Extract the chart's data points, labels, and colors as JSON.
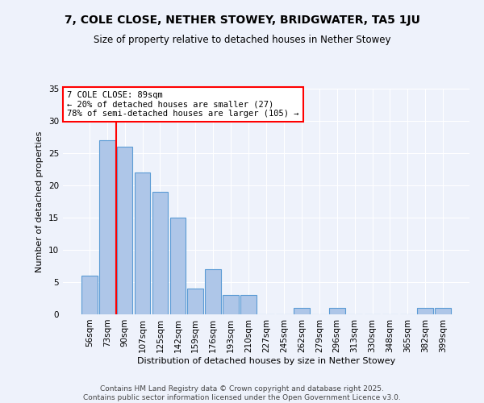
{
  "title": "7, COLE CLOSE, NETHER STOWEY, BRIDGWATER, TA5 1JU",
  "subtitle": "Size of property relative to detached houses in Nether Stowey",
  "xlabel": "Distribution of detached houses by size in Nether Stowey",
  "ylabel": "Number of detached properties",
  "categories": [
    "56sqm",
    "73sqm",
    "90sqm",
    "107sqm",
    "125sqm",
    "142sqm",
    "159sqm",
    "176sqm",
    "193sqm",
    "210sqm",
    "227sqm",
    "245sqm",
    "262sqm",
    "279sqm",
    "296sqm",
    "313sqm",
    "330sqm",
    "348sqm",
    "365sqm",
    "382sqm",
    "399sqm"
  ],
  "values": [
    6,
    27,
    26,
    22,
    19,
    15,
    4,
    7,
    3,
    3,
    0,
    0,
    1,
    0,
    1,
    0,
    0,
    0,
    0,
    1,
    1
  ],
  "bar_color": "#aec6e8",
  "bar_edge_color": "#5b9bd5",
  "vline_x": 1.5,
  "annotation_line1": "7 COLE CLOSE: 89sqm",
  "annotation_line2": "← 20% of detached houses are smaller (27)",
  "annotation_line3": "78% of semi-detached houses are larger (105) →",
  "ylim": [
    0,
    35
  ],
  "yticks": [
    0,
    5,
    10,
    15,
    20,
    25,
    30,
    35
  ],
  "footer1": "Contains HM Land Registry data © Crown copyright and database right 2025.",
  "footer2": "Contains public sector information licensed under the Open Government Licence v3.0.",
  "background_color": "#eef2fb",
  "plot_bg_color": "#eef2fb"
}
